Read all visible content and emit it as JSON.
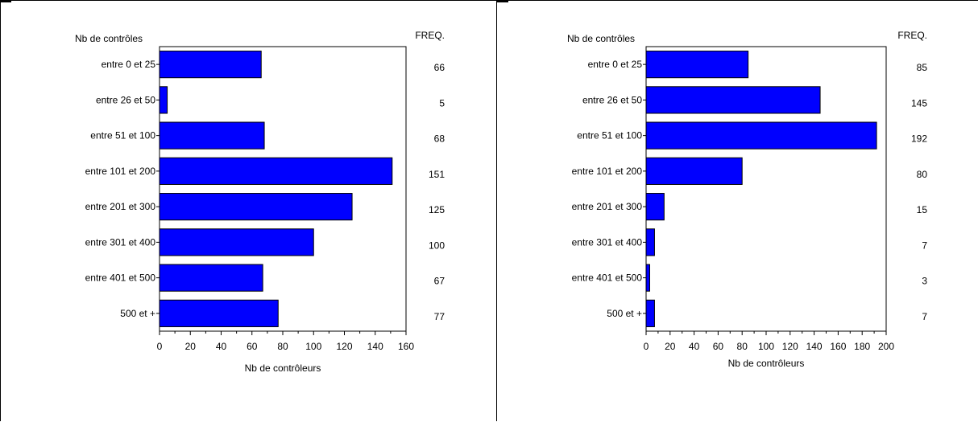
{
  "colors": {
    "bar_fill": "#0000ff",
    "bar_stroke": "#000000",
    "axis": "#000000",
    "background": "#ffffff"
  },
  "chart_data": [
    {
      "type": "bar",
      "orientation": "horizontal",
      "category_axis_title": "Nb de contrôles",
      "freq_header": "FREQ.",
      "xlabel": "Nb de contrôleurs",
      "categories": [
        "entre 0 et 25",
        "entre 26 et 50",
        "entre 51 et 100",
        "entre 101 et 200",
        "entre 201 et 300",
        "entre 301 et 400",
        "entre 401 et 500",
        "500 et +"
      ],
      "values": [
        66,
        5,
        68,
        151,
        125,
        100,
        67,
        77
      ],
      "xlim": [
        0,
        160
      ],
      "xticks": [
        0,
        20,
        40,
        60,
        80,
        100,
        120,
        140,
        160
      ],
      "grid": false,
      "legend": "none"
    },
    {
      "type": "bar",
      "orientation": "horizontal",
      "category_axis_title": "Nb de contrôles",
      "freq_header": "FREQ.",
      "xlabel": "Nb de contrôleurs",
      "categories": [
        "entre 0 et 25",
        "entre 26 et 50",
        "entre 51 et 100",
        "entre 101 et 200",
        "entre 201 et 300",
        "entre 301 et 400",
        "entre 401 et 500",
        "500 et +"
      ],
      "values": [
        85,
        145,
        192,
        80,
        15,
        7,
        3,
        7
      ],
      "xlim": [
        0,
        200
      ],
      "xticks": [
        0,
        20,
        40,
        60,
        80,
        100,
        120,
        140,
        160,
        180,
        200
      ],
      "grid": false,
      "legend": "none"
    }
  ]
}
